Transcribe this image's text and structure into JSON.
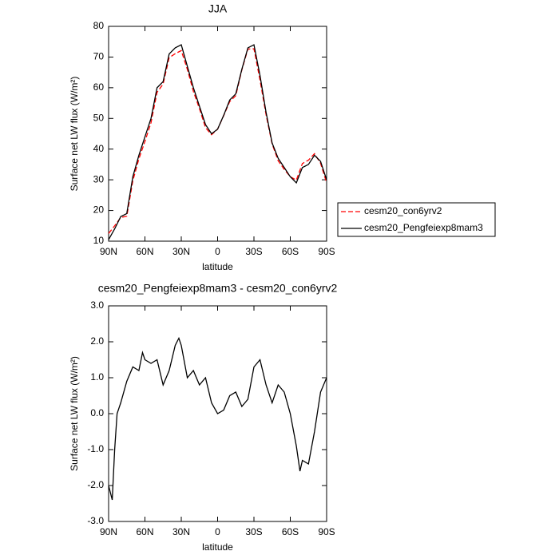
{
  "chart_data": [
    {
      "type": "line",
      "title": "JJA",
      "xlabel": "latitude",
      "ylabel": "Surface net LW flux (W/m²)",
      "x": [
        90,
        85,
        80,
        75,
        70,
        65,
        60,
        55,
        50,
        45,
        40,
        35,
        30,
        25,
        20,
        15,
        10,
        5,
        0,
        -5,
        -10,
        -15,
        -20,
        -25,
        -30,
        -35,
        -40,
        -45,
        -50,
        -55,
        -60,
        -65,
        -70,
        -75,
        -80,
        -85,
        -90
      ],
      "xlim": [
        90,
        -90
      ],
      "xticks": [
        {
          "value": 90,
          "label": "90N"
        },
        {
          "value": 60,
          "label": "60N"
        },
        {
          "value": 30,
          "label": "30N"
        },
        0,
        {
          "value": -30,
          "label": "30S"
        },
        {
          "value": -60,
          "label": "60S"
        },
        {
          "value": -90,
          "label": "90S"
        }
      ],
      "ylim": [
        10,
        80
      ],
      "yticks": [
        10,
        20,
        30,
        40,
        50,
        60,
        70,
        80
      ],
      "legend": "right",
      "series": [
        {
          "name": "cesm20_con6yrv2",
          "color": "#ff0000",
          "dashed": true,
          "values": [
            12.5,
            15,
            17.7,
            18.1,
            29.7,
            36.8,
            42.5,
            48.6,
            58.5,
            61.2,
            69.8,
            71.1,
            72.1,
            66,
            58.8,
            53.2,
            47,
            44.7,
            46.5,
            50.9,
            55.5,
            57.4,
            65.8,
            72.6,
            72.7,
            62.5,
            51.2,
            41.7,
            36.2,
            33.4,
            31,
            29.9,
            35.3,
            36.4,
            38.5,
            35.4,
            29
          ]
        },
        {
          "name": "cesm20_Pengfeiexp8mam3",
          "color": "#000000",
          "dashed": false,
          "values": [
            10.5,
            14,
            18,
            19,
            31,
            38,
            44,
            50,
            60,
            62,
            71,
            73,
            74,
            67,
            60,
            54,
            48,
            45,
            46.5,
            51,
            56,
            58,
            66,
            73,
            74,
            64,
            52,
            42,
            37,
            34,
            31,
            29,
            34,
            35,
            38,
            36,
            30
          ]
        }
      ]
    },
    {
      "type": "line",
      "title": "cesm20_Pengfeiexp8mam3 - cesm20_con6yrv2",
      "xlabel": "latitude",
      "ylabel": "Surface net LW flux (W/m²)",
      "x": [
        90,
        87,
        85,
        83,
        80,
        75,
        70,
        65,
        62,
        60,
        55,
        50,
        45,
        40,
        35,
        32,
        30,
        25,
        20,
        15,
        10,
        5,
        0,
        -5,
        -10,
        -15,
        -20,
        -25,
        -30,
        -35,
        -40,
        -45,
        -50,
        -55,
        -60,
        -65,
        -68,
        -70,
        -75,
        -80,
        -85,
        -90
      ],
      "xlim": [
        90,
        -90
      ],
      "xticks": [
        {
          "value": 90,
          "label": "90N"
        },
        {
          "value": 60,
          "label": "60N"
        },
        {
          "value": 30,
          "label": "30N"
        },
        0,
        {
          "value": -30,
          "label": "30S"
        },
        {
          "value": -60,
          "label": "60S"
        },
        {
          "value": -90,
          "label": "90S"
        }
      ],
      "ylim": [
        -3,
        3
      ],
      "yticks": [
        {
          "value": -3,
          "label": "-3.0"
        },
        {
          "value": -2,
          "label": "-2.0"
        },
        {
          "value": -1,
          "label": "-1.0"
        },
        {
          "value": 0,
          "label": "0.0"
        },
        {
          "value": 1,
          "label": "1.0"
        },
        {
          "value": 2,
          "label": "2.0"
        },
        {
          "value": 3,
          "label": "3.0"
        }
      ],
      "series": [
        {
          "color": "#000000",
          "dashed": false,
          "values": [
            -2.0,
            -2.4,
            -1.0,
            0,
            0.3,
            0.9,
            1.3,
            1.2,
            1.7,
            1.5,
            1.4,
            1.5,
            0.8,
            1.2,
            1.9,
            2.1,
            1.9,
            1.0,
            1.2,
            0.8,
            1.0,
            0.3,
            0.0,
            0.1,
            0.5,
            0.6,
            0.2,
            0.4,
            1.3,
            1.5,
            0.8,
            0.3,
            0.8,
            0.6,
            0.0,
            -0.9,
            -1.6,
            -1.3,
            -1.4,
            -0.5,
            0.6,
            1.0
          ]
        }
      ]
    }
  ]
}
